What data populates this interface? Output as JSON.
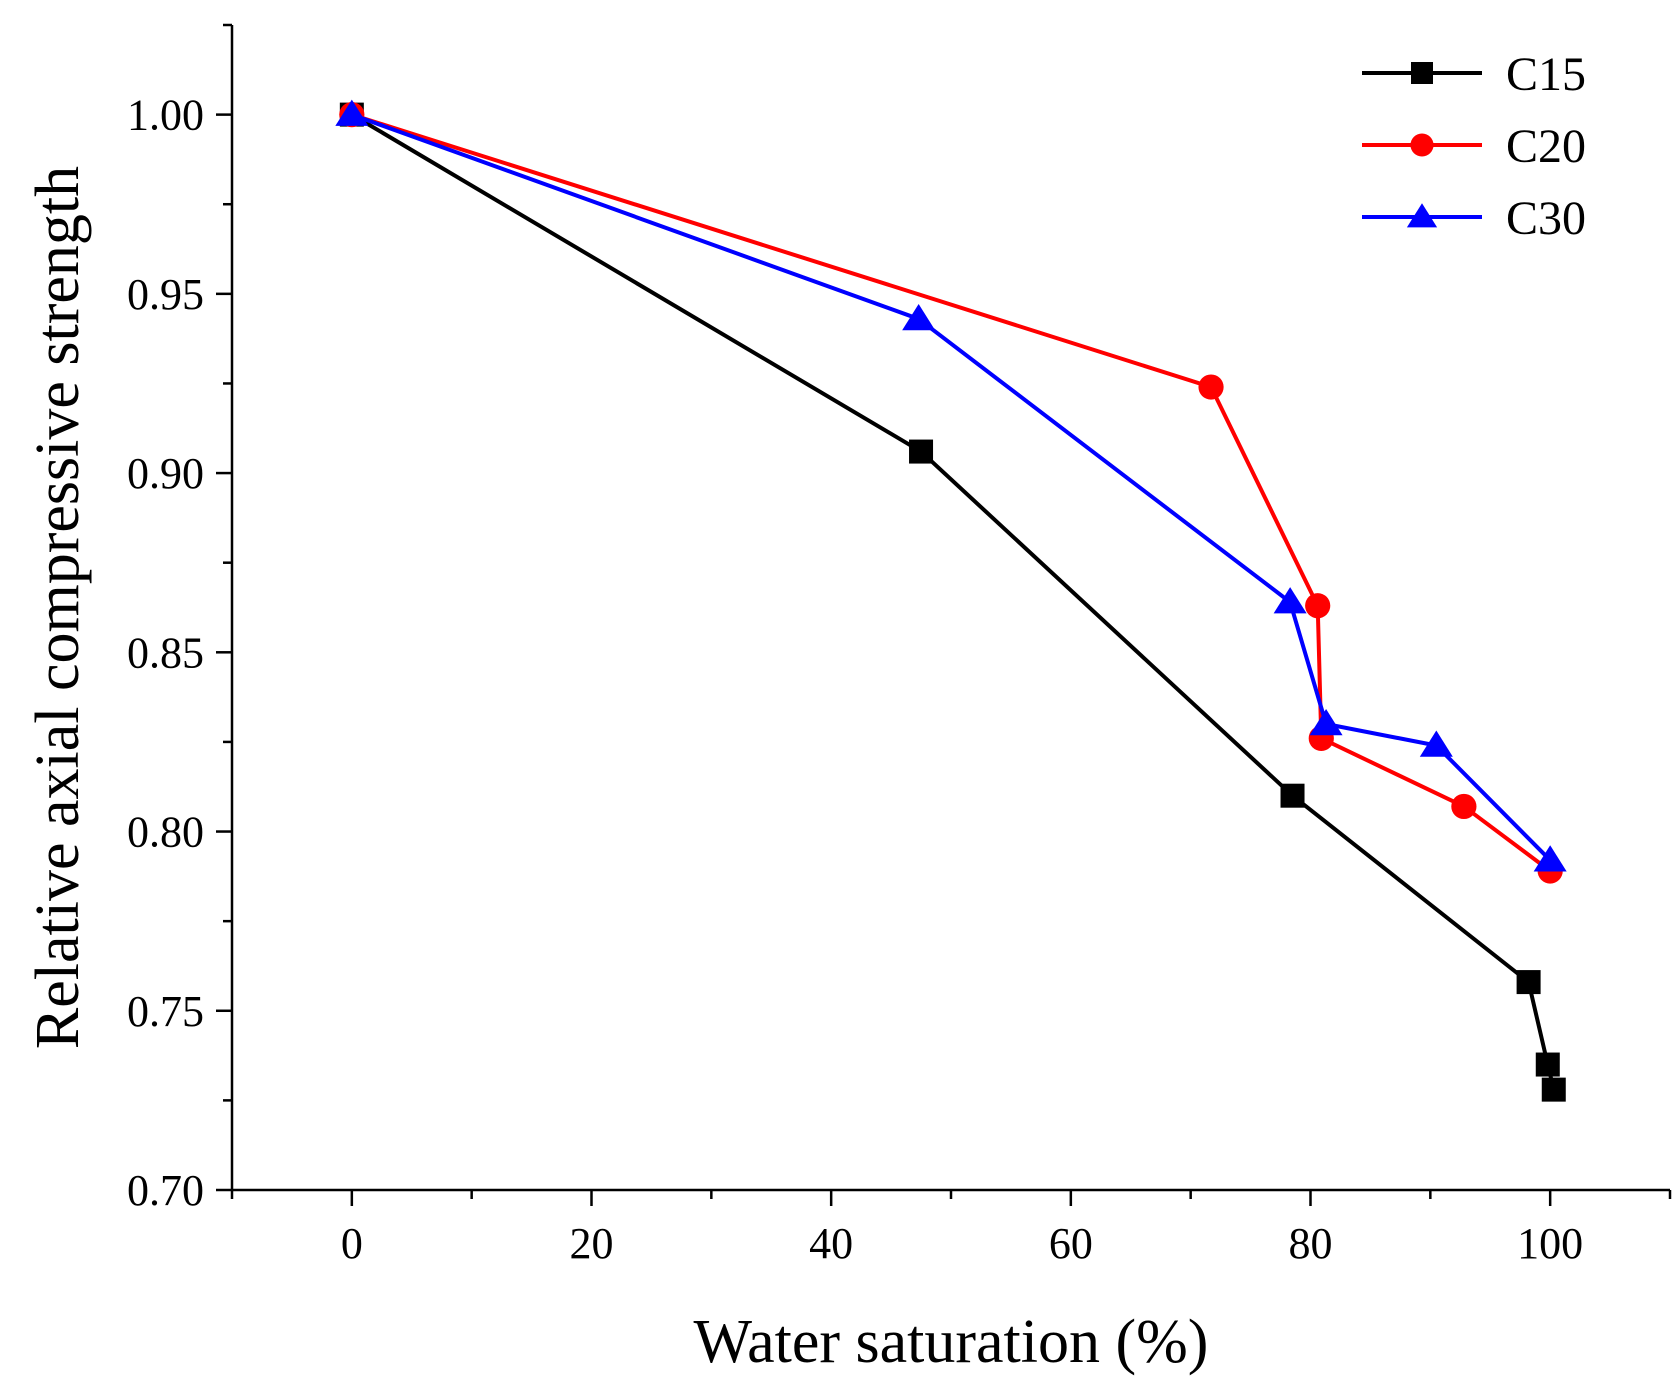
{
  "chart_data": {
    "type": "line",
    "title": "",
    "xlabel": "Water saturation (%)",
    "ylabel": "Relative axial compressive strength",
    "xlim": [
      -10,
      110
    ],
    "ylim": [
      0.7,
      1.025
    ],
    "x_ticks": [
      0,
      20,
      40,
      60,
      80,
      100
    ],
    "x_tick_labels": [
      "0",
      "20",
      "40",
      "60",
      "80",
      "100"
    ],
    "y_ticks": [
      0.7,
      0.75,
      0.8,
      0.85,
      0.9,
      0.95,
      1.0
    ],
    "y_tick_labels": [
      "0.70",
      "0.75",
      "0.80",
      "0.85",
      "0.90",
      "0.95",
      "1.00"
    ],
    "grid": false,
    "legend_position": "top-right",
    "series": [
      {
        "name": "C15",
        "color": "#000000",
        "marker": "square",
        "x": [
          0,
          47.5,
          78.5,
          98.2,
          99.8,
          100.3
        ],
        "y": [
          1.0,
          0.906,
          0.81,
          0.758,
          0.735,
          0.728
        ]
      },
      {
        "name": "C20",
        "color": "#ff0000",
        "marker": "circle",
        "x": [
          0,
          71.7,
          80.6,
          80.9,
          92.8,
          100.0
        ],
        "y": [
          1.0,
          0.924,
          0.863,
          0.826,
          0.807,
          0.789
        ]
      },
      {
        "name": "C30",
        "color": "#0000ff",
        "marker": "triangle",
        "x": [
          0,
          47.3,
          78.3,
          81.3,
          90.5,
          100.0
        ],
        "y": [
          1.0,
          0.943,
          0.864,
          0.83,
          0.824,
          0.792
        ]
      }
    ]
  }
}
